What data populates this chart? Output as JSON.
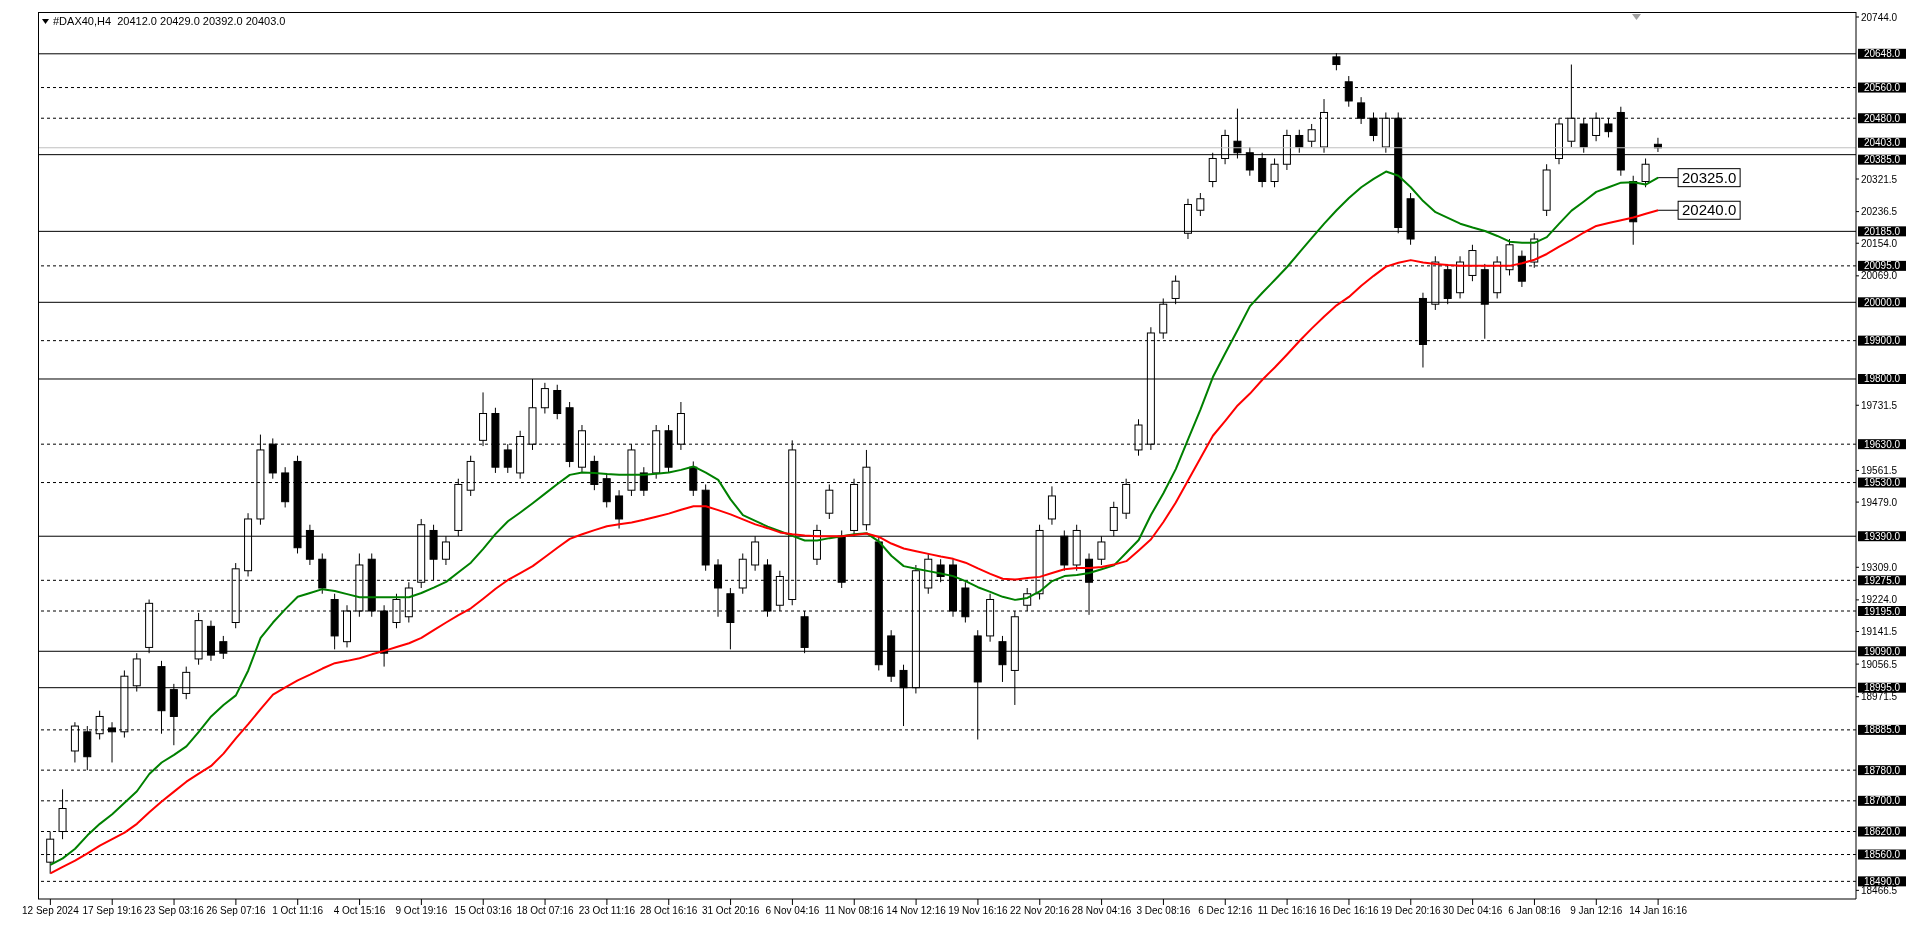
{
  "chart_data": {
    "type": "candlestick",
    "title": "#DAX40,H4  20412.0 20429.0 20392.0 20403.0",
    "color": "#000000",
    "categories": [
      "12 Sep 2024",
      null,
      null,
      null,
      null,
      "17 Sep 19:16",
      null,
      null,
      null,
      null,
      "23 Sep 03:16",
      null,
      null,
      null,
      null,
      "26 Sep 07:16",
      null,
      null,
      null,
      null,
      "1 Oct 11:16",
      null,
      null,
      null,
      null,
      "4 Oct 15:16",
      null,
      null,
      null,
      null,
      "9 Oct 19:16",
      null,
      null,
      null,
      null,
      "15 Oct 03:16",
      null,
      null,
      null,
      null,
      "18 Oct 07:16",
      null,
      null,
      null,
      null,
      "23 Oct 11:16",
      null,
      null,
      null,
      null,
      "28 Oct 16:16",
      null,
      null,
      null,
      null,
      "31 Oct 20:16",
      null,
      null,
      null,
      null,
      "6 Nov 04:16",
      null,
      null,
      null,
      null,
      "11 Nov 08:16",
      null,
      null,
      null,
      null,
      "14 Nov 12:16",
      null,
      null,
      null,
      null,
      "19 Nov 16:16",
      null,
      null,
      null,
      null,
      "22 Nov 20:16",
      null,
      null,
      null,
      null,
      "28 Nov 04:16",
      null,
      null,
      null,
      null,
      "3 Dec 08:16",
      null,
      null,
      null,
      null,
      "6 Dec 12:16",
      null,
      null,
      null,
      null,
      "11 Dec 16:16",
      null,
      null,
      null,
      null,
      "16 Dec 16:16",
      null,
      null,
      null,
      null,
      "19 Dec 20:16",
      null,
      null,
      null,
      null,
      "30 Dec 04:16",
      null,
      null,
      null,
      null,
      "6 Jan 08:16",
      null,
      null,
      null,
      null,
      "9 Jan 12:16",
      null,
      null,
      null,
      null,
      "14 Jan 16:16"
    ],
    "ohlc": [
      [
        18540,
        18620,
        18510,
        18600
      ],
      [
        18620,
        18730,
        18600,
        18680
      ],
      [
        18830,
        18905,
        18800,
        18895
      ],
      [
        18880,
        18895,
        18780,
        18815
      ],
      [
        18875,
        18935,
        18860,
        18920
      ],
      [
        18890,
        18905,
        18800,
        18880
      ],
      [
        18880,
        19040,
        18865,
        19025
      ],
      [
        19000,
        19085,
        18985,
        19070
      ],
      [
        19100,
        19225,
        19085,
        19215
      ],
      [
        19050,
        19065,
        18875,
        18935
      ],
      [
        18990,
        19005,
        18845,
        18920
      ],
      [
        18980,
        19050,
        18965,
        19035
      ],
      [
        19070,
        19190,
        19055,
        19170
      ],
      [
        19155,
        19170,
        19065,
        19080
      ],
      [
        19115,
        19130,
        19070,
        19085
      ],
      [
        19165,
        19320,
        19150,
        19305
      ],
      [
        19300,
        19450,
        19285,
        19435
      ],
      [
        19435,
        19655,
        19420,
        19615
      ],
      [
        19630,
        19645,
        19540,
        19555
      ],
      [
        19555,
        19570,
        19465,
        19480
      ],
      [
        19585,
        19600,
        19345,
        19360
      ],
      [
        19405,
        19420,
        19315,
        19330
      ],
      [
        19330,
        19345,
        19240,
        19255
      ],
      [
        19225,
        19240,
        19095,
        19130
      ],
      [
        19115,
        19210,
        19100,
        19195
      ],
      [
        19195,
        19345,
        19180,
        19315
      ],
      [
        19330,
        19345,
        19180,
        19195
      ],
      [
        19195,
        19210,
        19050,
        19085
      ],
      [
        19165,
        19240,
        19150,
        19225
      ],
      [
        19180,
        19270,
        19165,
        19255
      ],
      [
        19270,
        19435,
        19255,
        19420
      ],
      [
        19405,
        19420,
        19275,
        19330
      ],
      [
        19330,
        19390,
        19315,
        19375
      ],
      [
        19405,
        19540,
        19390,
        19525
      ],
      [
        19510,
        19600,
        19495,
        19585
      ],
      [
        19640,
        19765,
        19625,
        19710
      ],
      [
        19710,
        19725,
        19555,
        19570
      ],
      [
        19615,
        19630,
        19555,
        19570
      ],
      [
        19555,
        19665,
        19540,
        19650
      ],
      [
        19630,
        19800,
        19615,
        19725
      ],
      [
        19725,
        19790,
        19710,
        19775
      ],
      [
        19770,
        19785,
        19695,
        19710
      ],
      [
        19725,
        19740,
        19570,
        19585
      ],
      [
        19570,
        19680,
        19555,
        19665
      ],
      [
        19585,
        19600,
        19510,
        19525
      ],
      [
        19540,
        19555,
        19465,
        19480
      ],
      [
        19495,
        19510,
        19410,
        19435
      ],
      [
        19510,
        19630,
        19495,
        19615
      ],
      [
        19555,
        19570,
        19495,
        19510
      ],
      [
        19555,
        19680,
        19540,
        19665
      ],
      [
        19665,
        19680,
        19555,
        19570
      ],
      [
        19630,
        19740,
        19615,
        19710
      ],
      [
        19570,
        19585,
        19495,
        19510
      ],
      [
        19510,
        19525,
        19300,
        19315
      ],
      [
        19315,
        19330,
        19180,
        19255
      ],
      [
        19240,
        19255,
        19095,
        19165
      ],
      [
        19255,
        19345,
        19240,
        19330
      ],
      [
        19315,
        19390,
        19300,
        19375
      ],
      [
        19315,
        19330,
        19180,
        19195
      ],
      [
        19210,
        19300,
        19195,
        19285
      ],
      [
        19225,
        19640,
        19210,
        19615
      ],
      [
        19180,
        19195,
        19085,
        19100
      ],
      [
        19330,
        19420,
        19315,
        19405
      ],
      [
        19450,
        19525,
        19435,
        19510
      ],
      [
        19390,
        19405,
        19255,
        19270
      ],
      [
        19405,
        19540,
        19390,
        19525
      ],
      [
        19420,
        19615,
        19405,
        19570
      ],
      [
        19375,
        19390,
        19040,
        19055
      ],
      [
        19130,
        19145,
        19010,
        19025
      ],
      [
        19040,
        19055,
        18895,
        18995
      ],
      [
        18995,
        19315,
        18980,
        19300
      ],
      [
        19255,
        19345,
        19240,
        19330
      ],
      [
        19315,
        19330,
        19270,
        19285
      ],
      [
        19315,
        19330,
        19180,
        19195
      ],
      [
        19255,
        19270,
        19165,
        19180
      ],
      [
        19130,
        19145,
        18860,
        19010
      ],
      [
        19130,
        19240,
        19115,
        19225
      ],
      [
        19115,
        19130,
        19010,
        19055
      ],
      [
        19040,
        19195,
        18950,
        19180
      ],
      [
        19210,
        19255,
        19195,
        19240
      ],
      [
        19240,
        19420,
        19225,
        19405
      ],
      [
        19435,
        19520,
        19420,
        19495
      ],
      [
        19390,
        19405,
        19300,
        19315
      ],
      [
        19315,
        19420,
        19300,
        19405
      ],
      [
        19330,
        19345,
        19185,
        19270
      ],
      [
        19330,
        19390,
        19315,
        19375
      ],
      [
        19405,
        19480,
        19390,
        19465
      ],
      [
        19450,
        19540,
        19435,
        19525
      ],
      [
        19615,
        19695,
        19600,
        19680
      ],
      [
        19630,
        19935,
        19615,
        19920
      ],
      [
        19920,
        20010,
        19905,
        19995
      ],
      [
        20010,
        20070,
        19995,
        20055
      ],
      [
        20180,
        20270,
        20165,
        20255
      ],
      [
        20240,
        20285,
        20225,
        20270
      ],
      [
        20315,
        20390,
        20300,
        20375
      ],
      [
        20375,
        20450,
        20360,
        20435
      ],
      [
        20420,
        20505,
        20375,
        20390
      ],
      [
        20390,
        20405,
        20330,
        20345
      ],
      [
        20375,
        20390,
        20300,
        20315
      ],
      [
        20315,
        20375,
        20300,
        20360
      ],
      [
        20360,
        20450,
        20345,
        20435
      ],
      [
        20435,
        20450,
        20390,
        20405
      ],
      [
        20420,
        20465,
        20405,
        20450
      ],
      [
        20405,
        20530,
        20390,
        20495
      ],
      [
        20640,
        20650,
        20605,
        20620
      ],
      [
        20575,
        20590,
        20510,
        20525
      ],
      [
        20520,
        20535,
        20465,
        20480
      ],
      [
        20480,
        20495,
        20420,
        20435
      ],
      [
        20405,
        20495,
        20390,
        20480
      ],
      [
        20480,
        20495,
        20180,
        20195
      ],
      [
        20270,
        20285,
        20150,
        20165
      ],
      [
        20010,
        20025,
        19830,
        19890
      ],
      [
        19995,
        20120,
        19980,
        20105
      ],
      [
        20085,
        20100,
        19995,
        20010
      ],
      [
        20025,
        20120,
        20010,
        20105
      ],
      [
        20070,
        20150,
        20055,
        20135
      ],
      [
        20085,
        20100,
        19905,
        19995
      ],
      [
        20025,
        20120,
        20010,
        20105
      ],
      [
        20085,
        20165,
        20070,
        20150
      ],
      [
        20120,
        20135,
        20040,
        20055
      ],
      [
        20105,
        20180,
        20090,
        20165
      ],
      [
        20240,
        20360,
        20225,
        20345
      ],
      [
        20375,
        20480,
        20360,
        20465
      ],
      [
        20420,
        20620,
        20405,
        20480
      ],
      [
        20465,
        20480,
        20390,
        20405
      ],
      [
        20435,
        20495,
        20420,
        20480
      ],
      [
        20465,
        20480,
        20430,
        20445
      ],
      [
        20495,
        20510,
        20330,
        20345
      ],
      [
        20315,
        20330,
        20150,
        20210
      ],
      [
        20315,
        20375,
        20300,
        20360
      ],
      [
        20412,
        20429,
        20392,
        20403
      ]
    ],
    "series": [
      {
        "type": "line",
        "color": "#008000",
        "values": [
          18533,
          18550,
          18575,
          18610,
          18640,
          18665,
          18695,
          18725,
          18770,
          18800,
          18820,
          18842,
          18880,
          18920,
          18950,
          18975,
          19040,
          19125,
          19165,
          19200,
          19232,
          19242,
          19252,
          19247,
          19239,
          19231,
          19231,
          19231,
          19231,
          19231,
          19242,
          19256,
          19271,
          19296,
          19321,
          19357,
          19396,
          19429,
          19452,
          19476,
          19501,
          19526,
          19550,
          19556,
          19555,
          19552,
          19550,
          19550,
          19550,
          19553,
          19556,
          19563,
          19572,
          19556,
          19537,
          19486,
          19445,
          19430,
          19415,
          19403,
          19391,
          19379,
          19379,
          19385,
          19390,
          19395,
          19398,
          19376,
          19339,
          19312,
          19305,
          19299,
          19293,
          19286,
          19273,
          19257,
          19245,
          19232,
          19224,
          19229,
          19246,
          19273,
          19286,
          19289,
          19294,
          19304,
          19314,
          19347,
          19380,
          19446,
          19502,
          19565,
          19643,
          19721,
          19805,
          19867,
          19928,
          19990,
          20025,
          20058,
          20092,
          20130,
          20168,
          20205,
          20240,
          20272,
          20300,
          20322,
          20341,
          20330,
          20300,
          20264,
          20235,
          20220,
          20205,
          20195,
          20186,
          20173,
          20158,
          20155,
          20155,
          20170,
          20205,
          20239,
          20263,
          20288,
          20300,
          20312,
          20313,
          20307,
          20325
        ]
      },
      {
        "type": "line",
        "color": "#ff0000",
        "values": [
          18511,
          18528,
          18544,
          18563,
          18583,
          18600,
          18617,
          18640,
          18670,
          18698,
          18724,
          18750,
          18771,
          18791,
          18823,
          18863,
          18900,
          18939,
          18977,
          18996,
          19014,
          19029,
          19045,
          19059,
          19065,
          19072,
          19082,
          19091,
          19101,
          19111,
          19125,
          19145,
          19165,
          19184,
          19202,
          19227,
          19253,
          19276,
          19294,
          19312,
          19336,
          19360,
          19383,
          19395,
          19406,
          19416,
          19421,
          19426,
          19433,
          19441,
          19449,
          19459,
          19468,
          19468,
          19458,
          19447,
          19434,
          19421,
          19411,
          19400,
          19395,
          19392,
          19390,
          19390,
          19390,
          19393,
          19397,
          19388,
          19371,
          19358,
          19351,
          19344,
          19337,
          19331,
          19321,
          19306,
          19292,
          19279,
          19277,
          19281,
          19284,
          19294,
          19304,
          19307,
          19307,
          19310,
          19316,
          19325,
          19353,
          19382,
          19427,
          19478,
          19536,
          19594,
          19652,
          19691,
          19731,
          19762,
          19798,
          19830,
          19864,
          19899,
          19932,
          19963,
          19992,
          20014,
          20043,
          20069,
          20093,
          20103,
          20110,
          20104,
          20100,
          20097,
          20095,
          20095,
          20095,
          20095,
          20095,
          20102,
          20111,
          20126,
          20145,
          20163,
          20182,
          20199,
          20207,
          20214,
          20221,
          20231,
          20240
        ]
      }
    ],
    "annotations": [
      {
        "text": "20325.0",
        "x": "14 Jan 16:16",
        "y": 20325
      },
      {
        "text": "20240.0",
        "x": "14 Jan 16:16",
        "y": 20240
      }
    ],
    "ylim": [
      18444,
      20757
    ],
    "yticks": [
      {
        "value": 20744,
        "label": "20744.0"
      },
      {
        "value": 20321.5,
        "label": "20321.5"
      },
      {
        "value": 20236.5,
        "label": "20236.5"
      },
      {
        "value": 20154,
        "label": "20154.0"
      },
      {
        "value": 20069,
        "label": "20069.0"
      },
      {
        "value": 19731.5,
        "label": "19731.5"
      },
      {
        "value": 19561.5,
        "label": "19561.5"
      },
      {
        "value": 19479,
        "label": "19479.0"
      },
      {
        "value": 19309,
        "label": "19309.0"
      },
      {
        "value": 19224,
        "label": "19224.0"
      },
      {
        "value": 19141.5,
        "label": "19141.5"
      },
      {
        "value": 19056.5,
        "label": "19056.5"
      },
      {
        "value": 18971.5,
        "label": "18971.5"
      },
      {
        "value": 18466.5,
        "label": "18466.5"
      }
    ],
    "ref_lines": [
      {
        "axis": "y",
        "value": 20648,
        "label": "20648.0",
        "line_style": "solid",
        "color": "#000000"
      },
      {
        "axis": "y",
        "value": 20560,
        "label": "20560.0",
        "line_style": "dashed",
        "color": "#000000"
      },
      {
        "axis": "y",
        "value": 20480,
        "label": "20480.0",
        "line_style": "dashed",
        "color": "#000000"
      },
      {
        "axis": "y",
        "value": 20403,
        "label": "20403.0",
        "line_style": "solid",
        "color": "#c0c0c0"
      },
      {
        "axis": "y",
        "value": 20385,
        "label": "20385.0",
        "line_style": "solid",
        "color": "#000000"
      },
      {
        "axis": "y",
        "value": 20185,
        "label": "20185.0",
        "line_style": "solid",
        "color": "#000000"
      },
      {
        "axis": "y",
        "value": 20095,
        "label": "20095.0",
        "line_style": "dashed",
        "color": "#000000"
      },
      {
        "axis": "y",
        "value": 20000,
        "label": "20000.0",
        "line_style": "solid",
        "color": "#000000"
      },
      {
        "axis": "y",
        "value": 19900,
        "label": "19900.0",
        "line_style": "dashed",
        "color": "#000000"
      },
      {
        "axis": "y",
        "value": 19800,
        "label": "19800.0",
        "line_style": "solid",
        "color": "#000000"
      },
      {
        "axis": "y",
        "value": 19630,
        "label": "19630.0",
        "line_style": "dashed",
        "color": "#000000"
      },
      {
        "axis": "y",
        "value": 19530,
        "label": "19530.0",
        "line_style": "dashed",
        "color": "#000000"
      },
      {
        "axis": "y",
        "value": 19390,
        "label": "19390.0",
        "line_style": "solid",
        "color": "#000000"
      },
      {
        "axis": "y",
        "value": 19275,
        "label": "19275.0",
        "line_style": "dashed",
        "color": "#000000"
      },
      {
        "axis": "y",
        "value": 19195,
        "label": "19195.0",
        "line_style": "dashed",
        "color": "#000000"
      },
      {
        "axis": "y",
        "value": 19090,
        "label": "19090.0",
        "line_style": "solid",
        "color": "#000000"
      },
      {
        "axis": "y",
        "value": 18995,
        "label": "18995.0",
        "line_style": "solid",
        "color": "#000000"
      },
      {
        "axis": "y",
        "value": 18885,
        "label": "18885.0",
        "line_style": "dashed",
        "color": "#000000"
      },
      {
        "axis": "y",
        "value": 18780,
        "label": "18780.0",
        "line_style": "dashed",
        "color": "#000000"
      },
      {
        "axis": "y",
        "value": 18700,
        "label": "18700.0",
        "line_style": "dashed",
        "color": "#000000"
      },
      {
        "axis": "y",
        "value": 18620,
        "label": "18620.0",
        "line_style": "dashed",
        "color": "#000000"
      },
      {
        "axis": "y",
        "value": 18560,
        "label": "18560.0",
        "line_style": "dashed",
        "color": "#000000"
      },
      {
        "axis": "y",
        "value": 18490,
        "label": "18490.0",
        "line_style": "dashed",
        "color": "#000000"
      }
    ]
  }
}
